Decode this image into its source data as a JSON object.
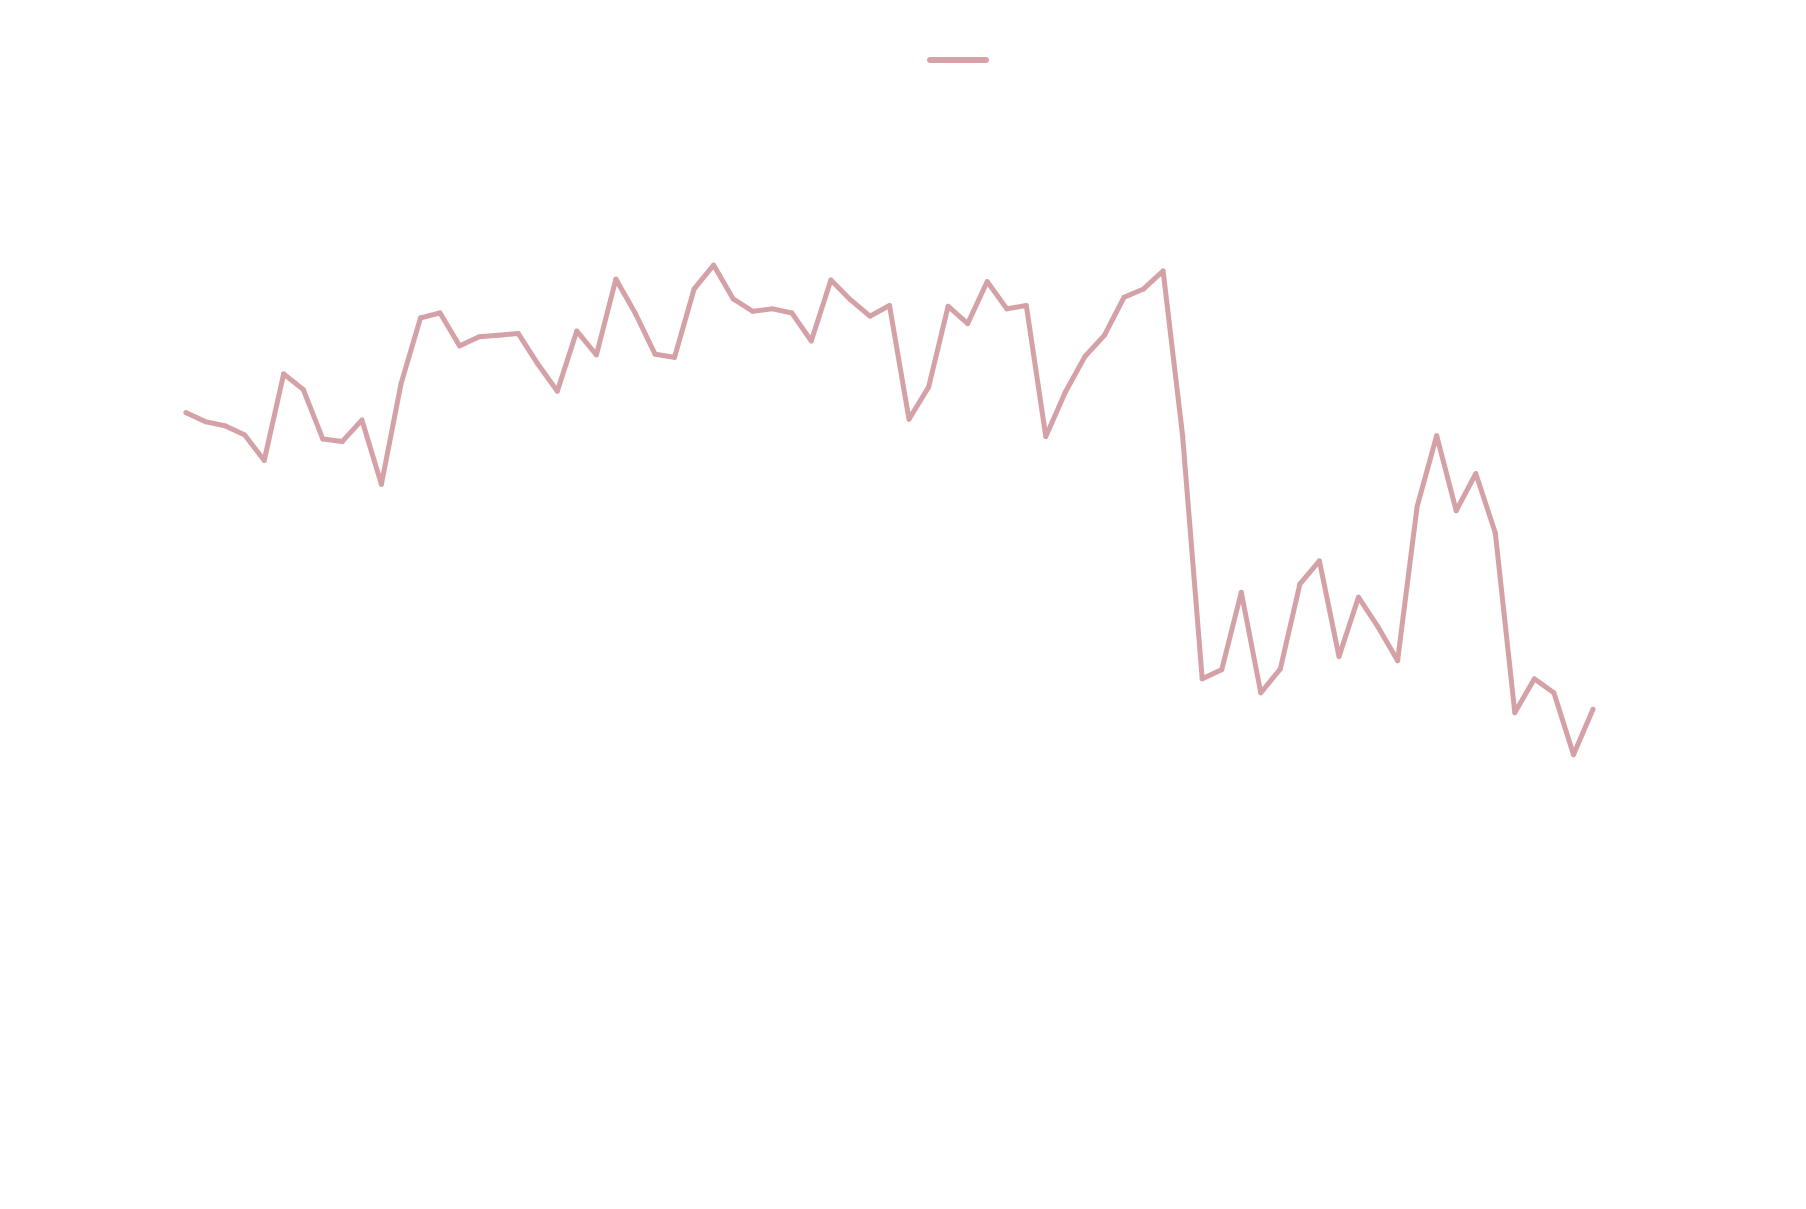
{
  "chart_data": {
    "type": "line",
    "title": "",
    "xlabel": "",
    "ylabel": "",
    "xlim": [
      0,
      72
    ],
    "ylim": [
      0,
      1
    ],
    "grid": false,
    "legend": {
      "placement": "top-center"
    },
    "series": [
      {
        "color": "#d4a1a7",
        "x": [
          0,
          1,
          2,
          3,
          4,
          5,
          6,
          7,
          8,
          9,
          10,
          11,
          12,
          13,
          14,
          15,
          16,
          17,
          18,
          19,
          20,
          21,
          22,
          23,
          24,
          25,
          26,
          27,
          28,
          29,
          30,
          31,
          32,
          33,
          34,
          35,
          36,
          37,
          38,
          39,
          40,
          41,
          42,
          43,
          44,
          45,
          46,
          47,
          48,
          49,
          50,
          51,
          52,
          53,
          54,
          55,
          56,
          57,
          58,
          59,
          60,
          61,
          62,
          63,
          64,
          65,
          66,
          67,
          68,
          69,
          70,
          71,
          72
        ],
        "values": [
          0.674,
          0.663,
          0.658,
          0.647,
          0.616,
          0.721,
          0.702,
          0.642,
          0.639,
          0.665,
          0.587,
          0.709,
          0.789,
          0.795,
          0.755,
          0.766,
          0.768,
          0.77,
          0.733,
          0.7,
          0.773,
          0.744,
          0.836,
          0.794,
          0.745,
          0.741,
          0.824,
          0.853,
          0.812,
          0.797,
          0.8,
          0.795,
          0.761,
          0.835,
          0.811,
          0.791,
          0.804,
          0.666,
          0.705,
          0.803,
          0.782,
          0.833,
          0.8,
          0.804,
          0.645,
          0.699,
          0.742,
          0.768,
          0.814,
          0.824,
          0.846,
          0.646,
          0.351,
          0.362,
          0.456,
          0.334,
          0.363,
          0.466,
          0.494,
          0.378,
          0.45,
          0.414,
          0.373,
          0.56,
          0.646,
          0.555,
          0.6,
          0.528,
          0.31,
          0.351,
          0.334,
          0.259,
          0.314
        ]
      }
    ]
  },
  "colors": {
    "series_line": "#d4a1a7",
    "background": "#ffffff"
  }
}
